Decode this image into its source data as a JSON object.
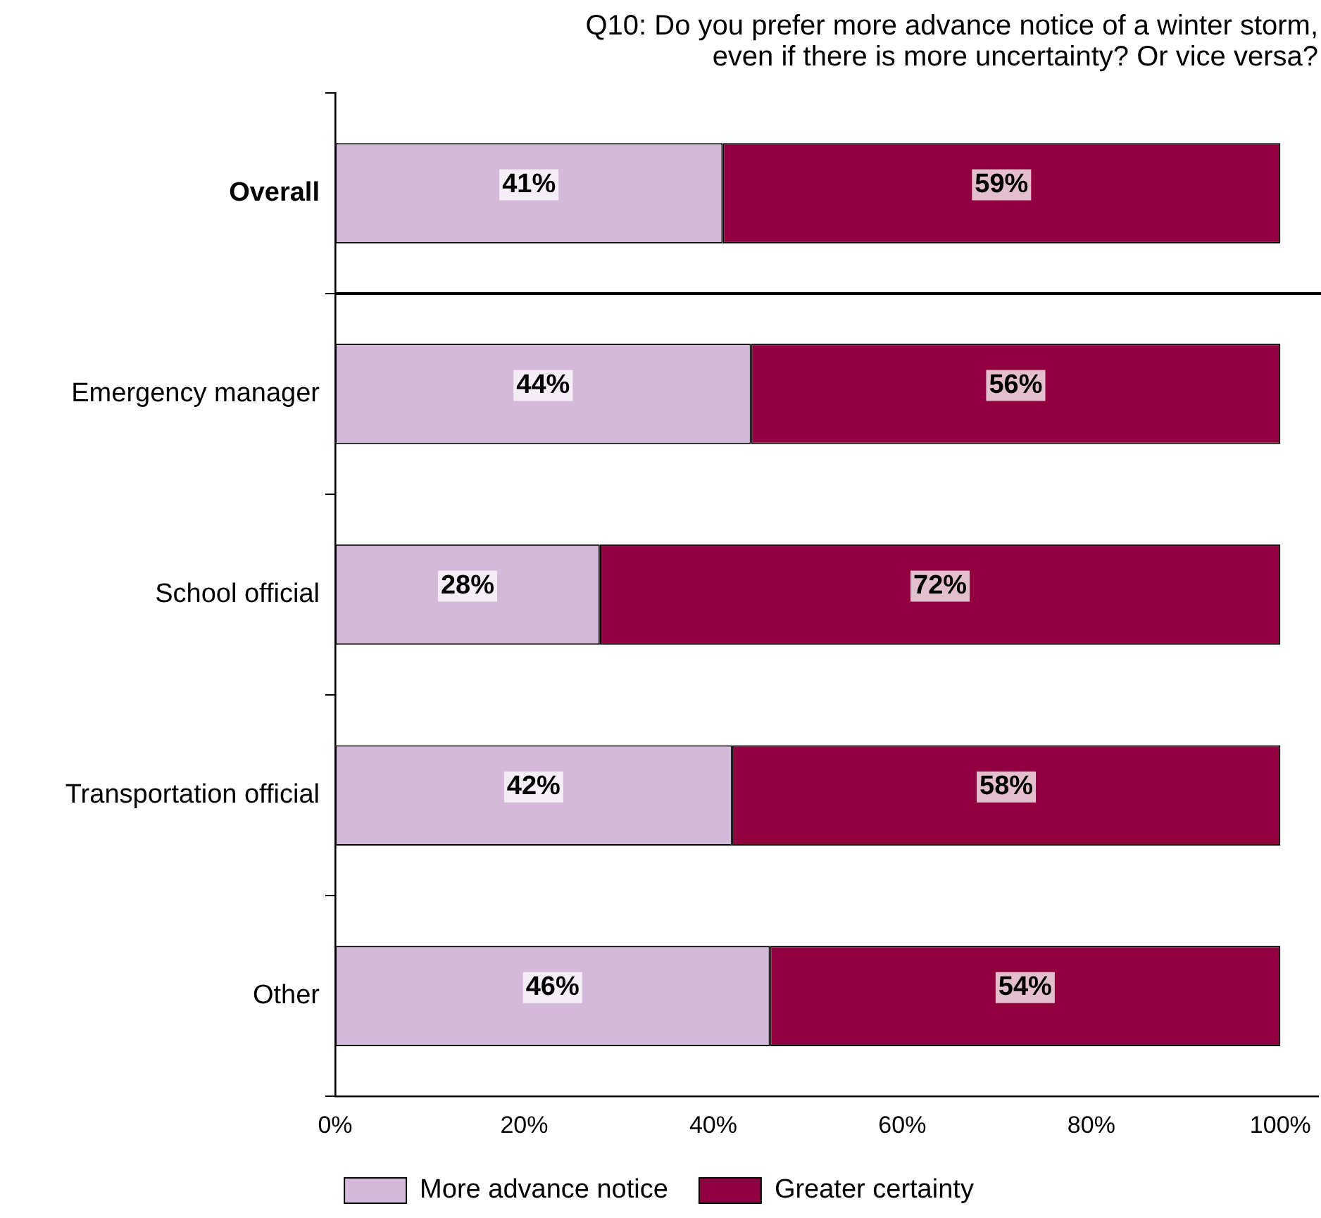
{
  "chart_data": {
    "type": "bar",
    "orientation": "horizontal",
    "stacked": true,
    "title": "Q10: Do you prefer more advance notice of a winter storm, even if there is more uncertainty? Or vice versa?",
    "categories": [
      "Overall",
      "Emergency manager",
      "School official",
      "Transportation official",
      "Other"
    ],
    "series": [
      {
        "name": "More advance notice",
        "color": "#d4b9da",
        "values": [
          41,
          44,
          28,
          42,
          46
        ],
        "value_labels": [
          "41%",
          "44%",
          "28%",
          "42%",
          "46%"
        ]
      },
      {
        "name": "Greater certainty",
        "color": "#91003f",
        "values": [
          59,
          56,
          72,
          58,
          54
        ],
        "value_labels": [
          "59%",
          "56%",
          "72%",
          "58%",
          "54%"
        ]
      }
    ],
    "xlim": [
      0,
      104
    ],
    "xticks": [
      {
        "value": 0,
        "label": "0%"
      },
      {
        "value": 20,
        "label": "20%"
      },
      {
        "value": 40,
        "label": "40%"
      },
      {
        "value": 60,
        "label": "60%"
      },
      {
        "value": 80,
        "label": "80%"
      },
      {
        "value": 100,
        "label": "100%"
      }
    ],
    "legend": "bottom",
    "grid": false
  }
}
